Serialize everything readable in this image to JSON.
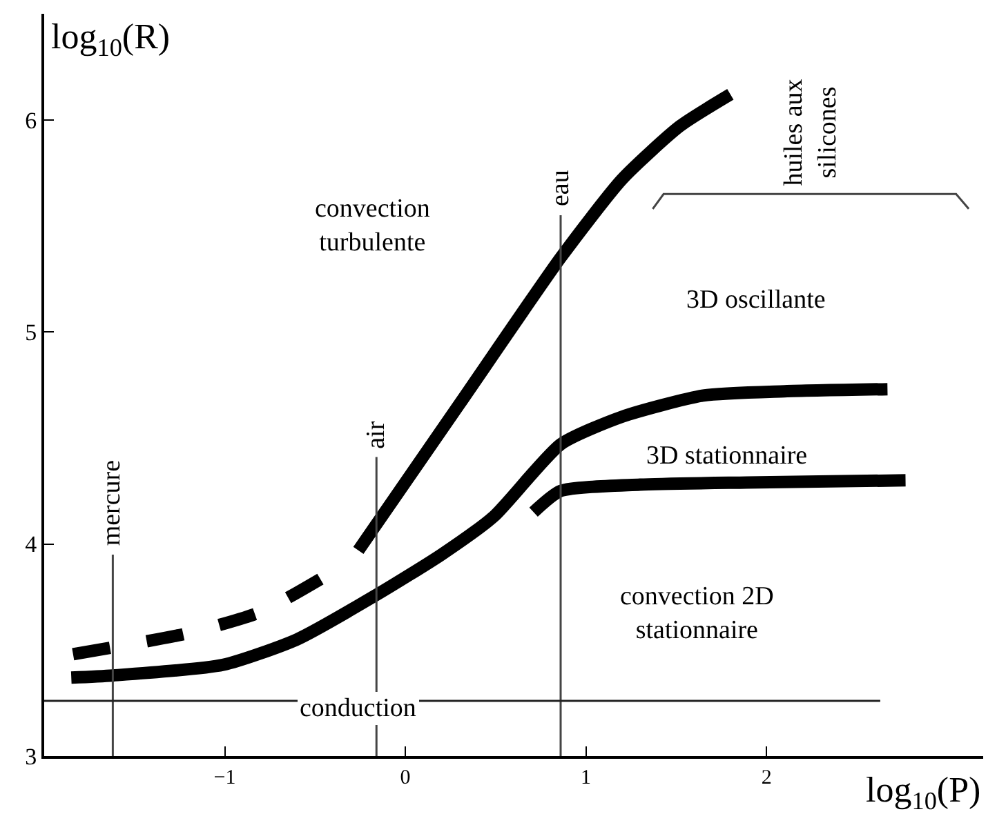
{
  "chart_data": {
    "type": "line",
    "xlabel": "log$_{10}$(P)",
    "ylabel": "log$_{10}$(R)",
    "xlim": [
      -2.0,
      3.2
    ],
    "ylim": [
      3,
      6.5
    ],
    "xticks": [
      -1,
      0,
      1,
      2
    ],
    "yticks": [
      3,
      4,
      5,
      6
    ],
    "legend": false,
    "marker": "none",
    "series": [
      {
        "color": "#000000",
        "line_style": "solid",
        "x": [
          -1.85,
          -1.62,
          -1.01,
          -0.6,
          -0.16,
          0.2,
          0.49,
          0.86,
          1.2,
          1.65,
          2.1,
          2.67
        ],
        "values": [
          3.37,
          3.38,
          3.43,
          3.55,
          3.76,
          3.95,
          4.13,
          4.47,
          4.6,
          4.7,
          4.72,
          4.73
        ]
      },
      {
        "color": "#000000",
        "line_style": "dashed",
        "x": [
          -1.84,
          -1.2,
          -0.8,
          -0.42
        ],
        "values": [
          3.48,
          3.58,
          3.68,
          3.86
        ]
      },
      {
        "color": "#000000",
        "line_style": "solid",
        "x": [
          -0.26,
          0.3,
          0.86,
          1.2,
          1.52,
          1.8
        ],
        "values": [
          3.97,
          4.66,
          5.35,
          5.72,
          5.97,
          6.12
        ]
      },
      {
        "color": "#000000",
        "line_style": "solid",
        "x": [
          0.71,
          0.86,
          1.3,
          1.89,
          2.77
        ],
        "values": [
          4.15,
          4.25,
          4.28,
          4.29,
          4.3
        ]
      },
      {
        "name": "mercure",
        "color": "#444444",
        "line_style": "solid",
        "x": [
          -1.62,
          -1.62
        ],
        "values": [
          3,
          3.95
        ]
      },
      {
        "name": "air",
        "color": "#444444",
        "line_style": "solid",
        "x": [
          -0.16,
          -0.16
        ],
        "values": [
          3,
          4.41
        ]
      },
      {
        "name": "eau",
        "color": "#444444",
        "line_style": "solid",
        "x": [
          0.86,
          0.86
        ],
        "values": [
          3,
          5.55
        ]
      },
      {
        "name": "huiles aux\nsilicones",
        "color": "#444444",
        "line_style": "solid",
        "x": [
          1.37,
          1.43,
          3.05,
          3.12
        ],
        "values": [
          5.58,
          5.65,
          5.65,
          5.58
        ]
      },
      {
        "color": "#222222",
        "line_style": "solid",
        "x": [
          -2.0,
          2.63
        ],
        "values": [
          3.26,
          3.26
        ]
      }
    ],
    "annotations": [
      "convection\nturbulente",
      "3D oscillante",
      "3D stationnaire",
      "convection 2D\nstationnaire",
      "conduction"
    ]
  }
}
